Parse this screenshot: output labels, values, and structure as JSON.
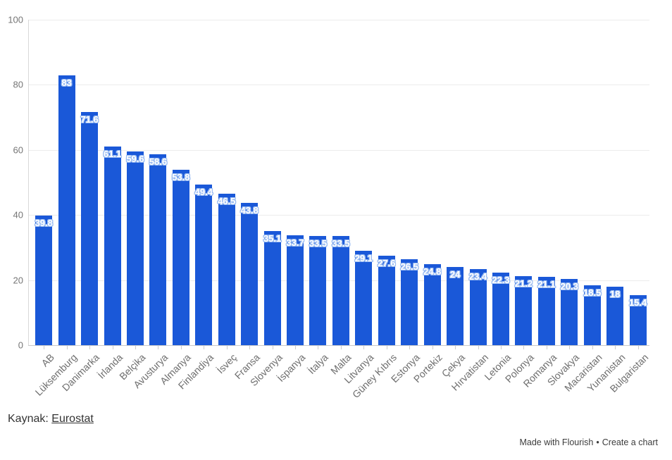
{
  "chart_data": {
    "type": "bar",
    "title": "",
    "xlabel": "",
    "ylabel": "",
    "categories": [
      "AB",
      "Lüksemburg",
      "Danimarka",
      "İrlanda",
      "Belçika",
      "Avusturya",
      "Almanya",
      "Finlandiya",
      "İsveç",
      "Fransa",
      "Slovenya",
      "İspanya",
      "İtalya",
      "Malta",
      "Litvanya",
      "Güney Kıbrıs",
      "Estonya",
      "Portekiz",
      "Çekya",
      "Hırvatistan",
      "Letonia",
      "Polonya",
      "Romanya",
      "Slovakya",
      "Macaristan",
      "Yunanistan",
      "Bulgaristan"
    ],
    "values": [
      39.8,
      83,
      71.6,
      61.1,
      59.6,
      58.6,
      53.8,
      49.4,
      46.5,
      43.8,
      35.1,
      33.7,
      33.5,
      33.5,
      29.1,
      27.6,
      26.5,
      24.8,
      24,
      23.4,
      22.3,
      21.2,
      21.1,
      20.3,
      18.5,
      18,
      15.4
    ],
    "ylim": [
      0,
      100
    ],
    "yticks": [
      0,
      20,
      40,
      60,
      80,
      100
    ],
    "grid": true,
    "legend": "none",
    "bar_color": "#1a58d8",
    "value_label_color": "#ffffff",
    "value_label_halo_color": "#9cbdf2"
  },
  "footer": {
    "source_prefix": "Kaynak: ",
    "source_link": "Eurostat"
  },
  "credit": {
    "made_with": "Made with Flourish",
    "separator": "•",
    "create": "Create a chart"
  }
}
